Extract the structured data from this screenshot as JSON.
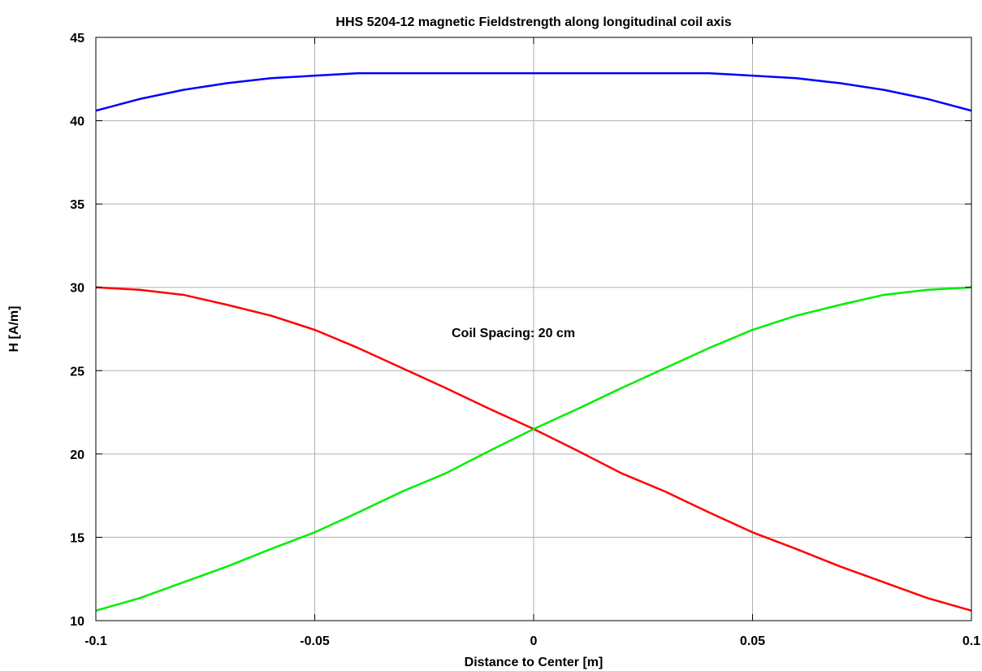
{
  "chart_data": {
    "type": "line",
    "title": "HHS 5204-12 magnetic Fieldstrength along longitudinal coil axis",
    "xlabel": "Distance to Center [m]",
    "ylabel": "H [A/m]",
    "xlim": [
      -0.1,
      0.1
    ],
    "ylim": [
      10,
      45
    ],
    "xticks": [
      -0.1,
      -0.05,
      0,
      0.05,
      0.1
    ],
    "xtick_labels": [
      "-0.1",
      "-0.05",
      "0",
      "0.05",
      "0.1"
    ],
    "yticks": [
      10,
      15,
      20,
      25,
      30,
      35,
      40,
      45
    ],
    "ytick_labels": [
      "10",
      "15",
      "20",
      "25",
      "30",
      "35",
      "40",
      "45"
    ],
    "grid": true,
    "annotation": "Coil Spacing: 20 cm",
    "x": [
      -0.1,
      -0.09,
      -0.08,
      -0.07,
      -0.06,
      -0.05,
      -0.04,
      -0.03,
      -0.02,
      -0.01,
      0,
      0.01,
      0.02,
      0.03,
      0.04,
      0.05,
      0.06,
      0.07,
      0.08,
      0.09,
      0.1
    ],
    "series": [
      {
        "color": "#0000ff",
        "values": [
          40.6,
          41.3,
          41.85,
          42.25,
          42.55,
          42.7,
          42.85,
          42.85,
          42.85,
          42.85,
          42.85,
          42.85,
          42.85,
          42.85,
          42.85,
          42.7,
          42.55,
          42.25,
          41.85,
          41.3,
          40.6
        ]
      },
      {
        "color": "#ff0000",
        "values": [
          30.0,
          29.85,
          29.55,
          28.95,
          28.3,
          27.45,
          26.35,
          25.15,
          23.95,
          22.7,
          21.5,
          20.2,
          18.85,
          17.75,
          16.5,
          15.3,
          14.3,
          13.25,
          12.3,
          11.35,
          10.6
        ]
      },
      {
        "color": "#00ee00",
        "values": [
          10.6,
          11.35,
          12.3,
          13.25,
          14.3,
          15.3,
          16.5,
          17.75,
          18.85,
          20.2,
          21.5,
          22.7,
          23.95,
          25.15,
          26.35,
          27.45,
          28.3,
          28.95,
          29.55,
          29.85,
          30.0
        ]
      }
    ]
  }
}
